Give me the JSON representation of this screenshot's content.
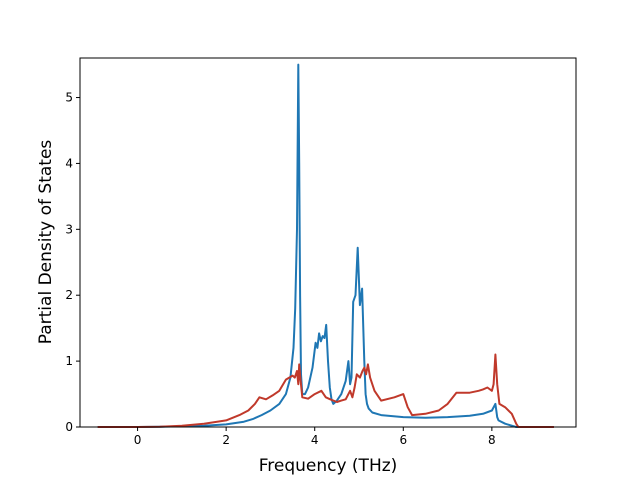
{
  "chart_data": {
    "type": "line",
    "title": "",
    "xlabel": "Frequency (THz)",
    "ylabel": "Partial Density of States",
    "xlim": [
      -1.3,
      9.9
    ],
    "ylim": [
      0,
      5.6
    ],
    "xticks": [
      0,
      2,
      4,
      6,
      8
    ],
    "yticks": [
      0,
      1,
      2,
      3,
      4,
      5
    ],
    "grid": false,
    "legend": "none",
    "series": [
      {
        "color": "#1f77b4",
        "x": [
          -0.9,
          0.0,
          0.5,
          1.0,
          1.5,
          2.0,
          2.4,
          2.6,
          2.8,
          3.0,
          3.2,
          3.35,
          3.45,
          3.52,
          3.56,
          3.6,
          3.63,
          3.65,
          3.67,
          3.69,
          3.72,
          3.78,
          3.85,
          3.95,
          4.02,
          4.06,
          4.1,
          4.14,
          4.18,
          4.22,
          4.26,
          4.3,
          4.34,
          4.38,
          4.42,
          4.5,
          4.6,
          4.7,
          4.76,
          4.8,
          4.83,
          4.87,
          4.92,
          4.97,
          5.02,
          5.07,
          5.12,
          5.15,
          5.18,
          5.22,
          5.3,
          5.5,
          6.0,
          6.5,
          7.0,
          7.5,
          7.8,
          8.0,
          8.08,
          8.12,
          8.15,
          8.3,
          8.45,
          8.55,
          8.7,
          9.4
        ],
        "y": [
          0.0,
          0.0,
          0.005,
          0.01,
          0.02,
          0.04,
          0.08,
          0.12,
          0.18,
          0.25,
          0.35,
          0.5,
          0.75,
          1.2,
          1.8,
          3.0,
          5.5,
          4.0,
          2.0,
          0.8,
          0.5,
          0.5,
          0.6,
          0.9,
          1.28,
          1.2,
          1.42,
          1.3,
          1.38,
          1.35,
          1.55,
          1.0,
          0.6,
          0.42,
          0.35,
          0.4,
          0.5,
          0.7,
          1.0,
          0.65,
          0.75,
          1.9,
          2.0,
          2.72,
          1.85,
          2.1,
          1.0,
          0.5,
          0.35,
          0.28,
          0.22,
          0.18,
          0.15,
          0.14,
          0.15,
          0.17,
          0.2,
          0.25,
          0.35,
          0.15,
          0.1,
          0.05,
          0.02,
          0.0,
          0.0,
          0.0
        ]
      },
      {
        "color": "#c0392b",
        "x": [
          -0.9,
          0.0,
          0.5,
          1.0,
          1.5,
          2.0,
          2.3,
          2.5,
          2.65,
          2.75,
          2.9,
          3.05,
          3.2,
          3.35,
          3.5,
          3.55,
          3.6,
          3.63,
          3.65,
          3.68,
          3.72,
          3.85,
          4.0,
          4.15,
          4.2,
          4.25,
          4.35,
          4.5,
          4.6,
          4.7,
          4.8,
          4.85,
          4.9,
          4.95,
          5.02,
          5.08,
          5.12,
          5.16,
          5.2,
          5.25,
          5.35,
          5.5,
          5.8,
          6.0,
          6.1,
          6.2,
          6.5,
          6.8,
          7.0,
          7.2,
          7.5,
          7.7,
          7.8,
          7.9,
          8.0,
          8.04,
          8.08,
          8.12,
          8.17,
          8.3,
          8.45,
          8.55,
          8.6,
          9.4
        ],
        "y": [
          0.0,
          0.0,
          0.005,
          0.02,
          0.05,
          0.1,
          0.18,
          0.25,
          0.35,
          0.45,
          0.42,
          0.48,
          0.55,
          0.72,
          0.78,
          0.75,
          0.85,
          0.65,
          0.95,
          0.72,
          0.45,
          0.43,
          0.5,
          0.55,
          0.5,
          0.45,
          0.42,
          0.38,
          0.4,
          0.42,
          0.55,
          0.45,
          0.6,
          0.8,
          0.75,
          0.85,
          0.9,
          0.8,
          0.95,
          0.75,
          0.55,
          0.4,
          0.45,
          0.5,
          0.3,
          0.18,
          0.2,
          0.25,
          0.35,
          0.52,
          0.52,
          0.55,
          0.57,
          0.6,
          0.55,
          0.65,
          1.1,
          0.65,
          0.35,
          0.3,
          0.2,
          0.05,
          0.0,
          0.0
        ]
      }
    ]
  }
}
